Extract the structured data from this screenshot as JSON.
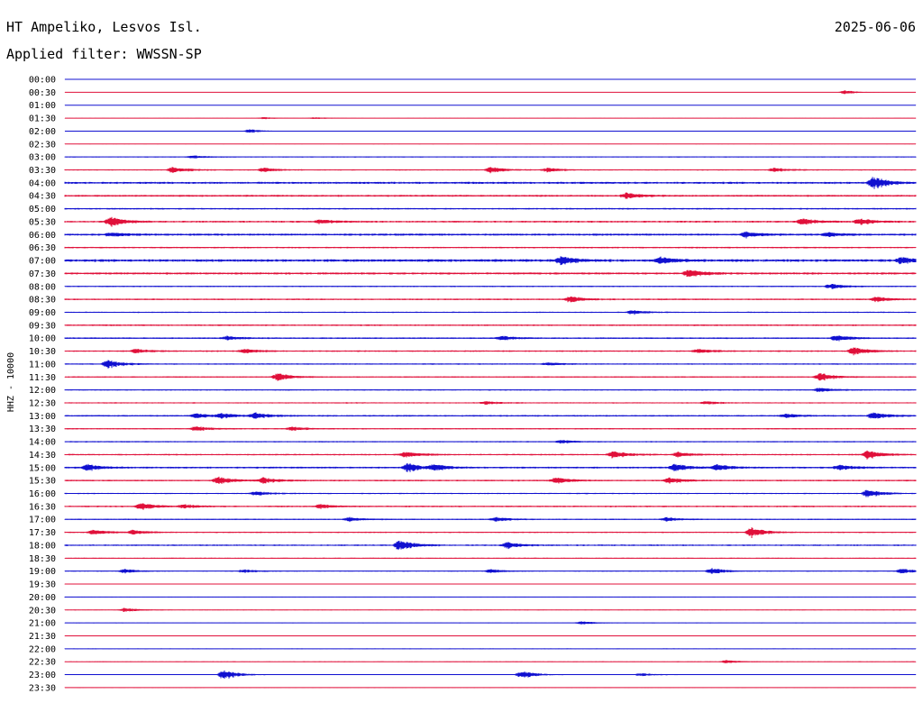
{
  "header": {
    "station": "HT Ampeliko, Lesvos Isl.",
    "date": "2025-06-06",
    "filter": "Applied filter: WWSSN-SP"
  },
  "chart_data": {
    "type": "line",
    "title": "HT Ampeliko, Lesvos Isl.",
    "subtitle": "Applied filter: WWSSN-SP",
    "ylabel": "HHZ - 10000",
    "xlabel": "",
    "row_labels": [
      "00:00",
      "00:30",
      "01:00",
      "01:30",
      "02:00",
      "02:30",
      "03:00",
      "03:30",
      "04:00",
      "04:30",
      "05:00",
      "05:30",
      "06:00",
      "06:30",
      "07:00",
      "07:30",
      "08:00",
      "08:30",
      "09:00",
      "09:30",
      "10:00",
      "10:30",
      "11:00",
      "11:30",
      "12:00",
      "12:30",
      "13:00",
      "13:30",
      "14:00",
      "14:30",
      "15:00",
      "15:30",
      "16:00",
      "16:30",
      "17:00",
      "17:30",
      "18:00",
      "18:30",
      "19:00",
      "19:30",
      "20:00",
      "20:30",
      "21:00",
      "21:30",
      "22:00",
      "22:30",
      "23:00",
      "23:30"
    ],
    "row_minutes": 30,
    "series_colors": [
      "#1010d0",
      "#e0103a"
    ],
    "noise_level": [
      0.1,
      0.1,
      0.1,
      0.15,
      0.15,
      0.2,
      0.4,
      0.5,
      0.8,
      0.7,
      0.6,
      0.7,
      0.8,
      0.6,
      1.0,
      0.8,
      0.5,
      0.6,
      0.5,
      0.6,
      0.6,
      0.6,
      0.5,
      0.5,
      0.5,
      0.5,
      0.6,
      0.5,
      0.5,
      0.6,
      0.7,
      0.6,
      0.5,
      0.6,
      0.5,
      0.5,
      0.6,
      0.4,
      0.4,
      0.3,
      0.3,
      0.3,
      0.3,
      0.3,
      0.3,
      0.3,
      0.3,
      0.3
    ],
    "events": [
      {
        "row": 1,
        "minute": 27.5,
        "amp": 2
      },
      {
        "row": 3,
        "minute": 7,
        "amp": 1
      },
      {
        "row": 3,
        "minute": 8.8,
        "amp": 1
      },
      {
        "row": 4,
        "minute": 6.5,
        "amp": 2
      },
      {
        "row": 6,
        "minute": 4.5,
        "amp": 1.5
      },
      {
        "row": 7,
        "minute": 3.8,
        "amp": 3
      },
      {
        "row": 7,
        "minute": 7,
        "amp": 2
      },
      {
        "row": 7,
        "minute": 15,
        "amp": 3
      },
      {
        "row": 7,
        "minute": 17,
        "amp": 2
      },
      {
        "row": 7,
        "minute": 25,
        "amp": 2
      },
      {
        "row": 8,
        "minute": 28.5,
        "amp": 6
      },
      {
        "row": 9,
        "minute": 19.8,
        "amp": 3
      },
      {
        "row": 11,
        "minute": 1.6,
        "amp": 5
      },
      {
        "row": 11,
        "minute": 9,
        "amp": 2
      },
      {
        "row": 11,
        "minute": 26,
        "amp": 3
      },
      {
        "row": 11,
        "minute": 28,
        "amp": 3
      },
      {
        "row": 12,
        "minute": 1.6,
        "amp": 2
      },
      {
        "row": 12,
        "minute": 24,
        "amp": 2.5
      },
      {
        "row": 12,
        "minute": 26.9,
        "amp": 2
      },
      {
        "row": 14,
        "minute": 17.5,
        "amp": 4
      },
      {
        "row": 14,
        "minute": 21,
        "amp": 3
      },
      {
        "row": 14,
        "minute": 29.5,
        "amp": 3
      },
      {
        "row": 15,
        "minute": 22,
        "amp": 4
      },
      {
        "row": 16,
        "minute": 27,
        "amp": 2.5
      },
      {
        "row": 17,
        "minute": 17.8,
        "amp": 3
      },
      {
        "row": 17,
        "minute": 28.6,
        "amp": 2.5
      },
      {
        "row": 18,
        "minute": 20,
        "amp": 2
      },
      {
        "row": 20,
        "minute": 5.7,
        "amp": 2
      },
      {
        "row": 20,
        "minute": 15.4,
        "amp": 2
      },
      {
        "row": 20,
        "minute": 27.2,
        "amp": 3
      },
      {
        "row": 21,
        "minute": 2.5,
        "amp": 2
      },
      {
        "row": 21,
        "minute": 6.3,
        "amp": 2
      },
      {
        "row": 21,
        "minute": 22.3,
        "amp": 2
      },
      {
        "row": 21,
        "minute": 27.8,
        "amp": 4
      },
      {
        "row": 22,
        "minute": 1.5,
        "amp": 4
      },
      {
        "row": 22,
        "minute": 17,
        "amp": 1.5
      },
      {
        "row": 23,
        "minute": 7.5,
        "amp": 4
      },
      {
        "row": 23,
        "minute": 26.6,
        "amp": 4
      },
      {
        "row": 24,
        "minute": 26.6,
        "amp": 2
      },
      {
        "row": 25,
        "minute": 14.8,
        "amp": 1.5
      },
      {
        "row": 25,
        "minute": 22.6,
        "amp": 1.5
      },
      {
        "row": 26,
        "minute": 4.6,
        "amp": 2.5
      },
      {
        "row": 26,
        "minute": 5.5,
        "amp": 2.5
      },
      {
        "row": 26,
        "minute": 6.7,
        "amp": 3
      },
      {
        "row": 26,
        "minute": 25.4,
        "amp": 2
      },
      {
        "row": 26,
        "minute": 28.5,
        "amp": 3.5
      },
      {
        "row": 27,
        "minute": 4.6,
        "amp": 2.5
      },
      {
        "row": 27,
        "minute": 8,
        "amp": 2
      },
      {
        "row": 28,
        "minute": 17.5,
        "amp": 1.5
      },
      {
        "row": 29,
        "minute": 12,
        "amp": 3
      },
      {
        "row": 29,
        "minute": 19.3,
        "amp": 4
      },
      {
        "row": 29,
        "minute": 21.6,
        "amp": 2.5
      },
      {
        "row": 29,
        "minute": 28.3,
        "amp": 4
      },
      {
        "row": 30,
        "minute": 0.8,
        "amp": 3
      },
      {
        "row": 30,
        "minute": 12.1,
        "amp": 4
      },
      {
        "row": 30,
        "minute": 13,
        "amp": 3
      },
      {
        "row": 30,
        "minute": 21.5,
        "amp": 3.5
      },
      {
        "row": 30,
        "minute": 23,
        "amp": 3
      },
      {
        "row": 30,
        "minute": 27.3,
        "amp": 2.5
      },
      {
        "row": 31,
        "minute": 5.4,
        "amp": 4
      },
      {
        "row": 31,
        "minute": 7,
        "amp": 3
      },
      {
        "row": 31,
        "minute": 17.3,
        "amp": 3
      },
      {
        "row": 31,
        "minute": 21.3,
        "amp": 3
      },
      {
        "row": 32,
        "minute": 6.7,
        "amp": 2
      },
      {
        "row": 32,
        "minute": 28.3,
        "amp": 4
      },
      {
        "row": 33,
        "minute": 2.7,
        "amp": 3
      },
      {
        "row": 33,
        "minute": 4.2,
        "amp": 2
      },
      {
        "row": 33,
        "minute": 9,
        "amp": 2
      },
      {
        "row": 34,
        "minute": 10,
        "amp": 2
      },
      {
        "row": 34,
        "minute": 15.2,
        "amp": 2
      },
      {
        "row": 34,
        "minute": 21.2,
        "amp": 2
      },
      {
        "row": 35,
        "minute": 1,
        "amp": 2.5
      },
      {
        "row": 35,
        "minute": 2.4,
        "amp": 2
      },
      {
        "row": 35,
        "minute": 24.2,
        "amp": 5
      },
      {
        "row": 36,
        "minute": 11.8,
        "amp": 5
      },
      {
        "row": 36,
        "minute": 15.6,
        "amp": 3
      },
      {
        "row": 38,
        "minute": 2.1,
        "amp": 2
      },
      {
        "row": 38,
        "minute": 6.3,
        "amp": 1.5
      },
      {
        "row": 38,
        "minute": 15,
        "amp": 2
      },
      {
        "row": 38,
        "minute": 22.8,
        "amp": 3
      },
      {
        "row": 38,
        "minute": 29.5,
        "amp": 2.5
      },
      {
        "row": 41,
        "minute": 2.1,
        "amp": 2
      },
      {
        "row": 42,
        "minute": 18.2,
        "amp": 1.5
      },
      {
        "row": 45,
        "minute": 23.3,
        "amp": 1.5
      },
      {
        "row": 46,
        "minute": 5.6,
        "amp": 5
      },
      {
        "row": 46,
        "minute": 16.1,
        "amp": 4
      },
      {
        "row": 46,
        "minute": 20.3,
        "amp": 1.5
      }
    ]
  }
}
